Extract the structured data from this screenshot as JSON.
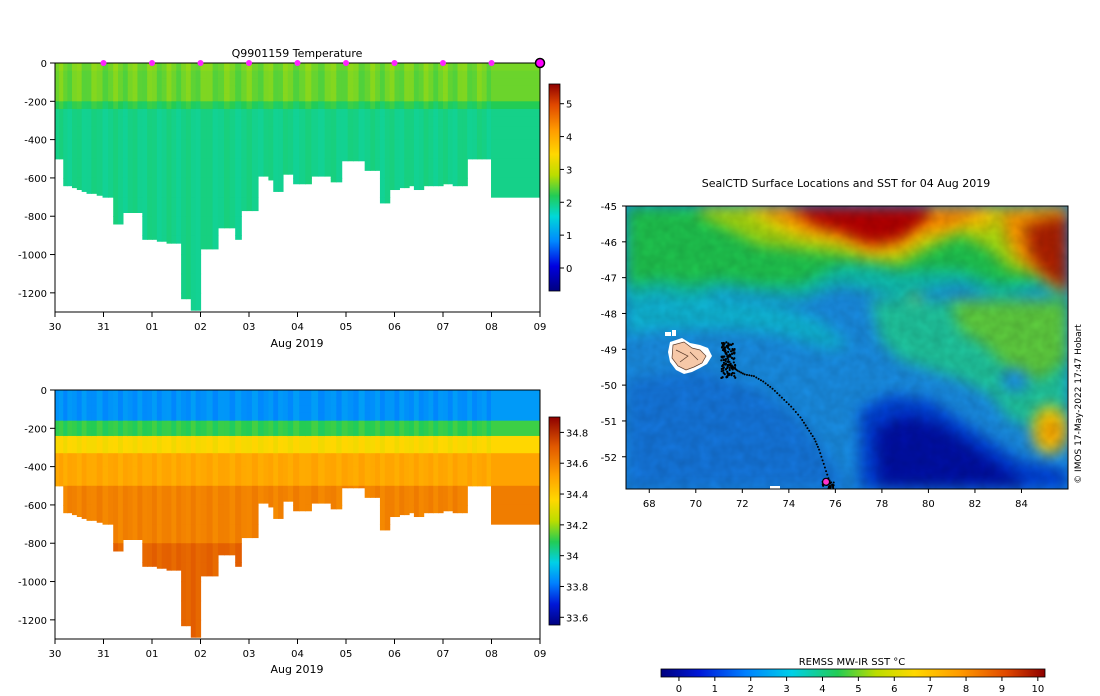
{
  "chart_data": [
    {
      "type": "heatmap",
      "id": "temperature-section",
      "title": "Q9901159  Temperature",
      "xlabel": "Aug 2019",
      "xticks": [
        "30",
        "31",
        "01",
        "02",
        "03",
        "04",
        "05",
        "06",
        "07",
        "08",
        "09"
      ],
      "xlim": [
        0,
        10
      ],
      "ylim": [
        -1300,
        0
      ],
      "yticks": [
        0,
        -200,
        -400,
        -600,
        -800,
        -1000,
        -1200
      ],
      "ytick_labels": [
        "0",
        "-200",
        "-400",
        "-600",
        "-800",
        "-1000",
        "-1200"
      ],
      "profile_times": [
        0.04,
        0.13,
        0.21,
        0.3,
        0.4,
        0.5,
        0.6,
        0.7,
        0.8,
        0.92,
        1.04,
        1.15,
        1.25,
        1.35,
        1.45,
        1.55,
        1.65,
        1.75,
        1.85,
        1.95,
        2.05,
        2.15,
        2.25,
        2.35,
        2.45,
        2.55,
        2.65,
        2.75,
        2.85,
        2.95,
        3.05,
        3.2,
        3.3,
        3.42,
        3.55,
        3.65,
        3.78,
        3.9,
        4.0,
        4.12,
        4.25,
        4.35,
        4.45,
        4.55,
        4.65,
        4.75,
        4.85,
        4.97,
        5.1,
        5.22,
        5.35,
        5.5,
        5.62,
        5.75,
        5.85,
        5.97,
        6.1,
        6.2,
        6.32,
        6.45,
        6.55,
        6.65,
        6.75,
        6.85,
        6.95,
        7.05,
        7.15,
        7.25,
        7.35,
        7.45,
        7.55,
        7.65,
        7.75,
        7.85,
        7.95,
        8.05,
        8.15,
        8.25,
        8.35,
        8.45,
        8.55,
        8.65,
        8.75,
        8.85,
        8.95,
        9.03
      ],
      "profile_depths": [
        500,
        500,
        640,
        640,
        650,
        660,
        670,
        680,
        680,
        690,
        700,
        700,
        840,
        840,
        780,
        780,
        780,
        780,
        920,
        920,
        920,
        930,
        930,
        940,
        940,
        940,
        1230,
        1230,
        1290,
        1290,
        970,
        970,
        970,
        860,
        860,
        860,
        920,
        770,
        770,
        770,
        590,
        590,
        610,
        670,
        670,
        580,
        580,
        630,
        630,
        630,
        590,
        590,
        590,
        620,
        620,
        510,
        510,
        510,
        510,
        560,
        560,
        560,
        730,
        730,
        660,
        660,
        650,
        650,
        640,
        660,
        660,
        640,
        640,
        640,
        640,
        630,
        630,
        640,
        640,
        640,
        500,
        500,
        500,
        500,
        500,
        700
      ],
      "profile_markers_at": [
        1,
        2,
        3,
        4,
        5,
        6,
        7,
        8,
        9,
        10
      ],
      "last_marker_at": 10,
      "colorbar_ticks": [
        0,
        1,
        2,
        3,
        4,
        5
      ],
      "colorbar_labels": [
        "0",
        "1",
        "2",
        "3",
        "4",
        "5"
      ],
      "colorbar_range": [
        -0.7,
        5.6
      ]
    },
    {
      "type": "heatmap",
      "id": "salinity-section",
      "title": "",
      "xlabel": "Aug 2019",
      "xticks": [
        "30",
        "31",
        "01",
        "02",
        "03",
        "04",
        "05",
        "06",
        "07",
        "08",
        "09"
      ],
      "xlim": [
        0,
        10
      ],
      "ylim": [
        -1300,
        0
      ],
      "yticks": [
        0,
        -200,
        -400,
        -600,
        -800,
        -1000,
        -1200
      ],
      "ytick_labels": [
        "0",
        "-200",
        "-400",
        "-600",
        "-800",
        "-1000",
        "-1200"
      ],
      "colorbar_ticks": [
        33.6,
        33.8,
        34.0,
        34.2,
        34.4,
        34.6,
        34.8
      ],
      "colorbar_labels": [
        "33.6",
        "33.8",
        "34",
        "34.2",
        "34.4",
        "34.6",
        "34.8"
      ],
      "colorbar_range": [
        33.55,
        34.9
      ]
    },
    {
      "type": "heatmap",
      "id": "sst-map",
      "title": "SealCTD Surface Locations and SST for 04 Aug 2019",
      "xlim": [
        67,
        86
      ],
      "ylim": [
        -52.9,
        -45
      ],
      "xticks": [
        68,
        70,
        72,
        74,
        76,
        78,
        80,
        82,
        84
      ],
      "xtick_labels": [
        "68",
        "70",
        "72",
        "74",
        "76",
        "78",
        "80",
        "82",
        "84"
      ],
      "yticks": [
        -45,
        -46,
        -47,
        -48,
        -49,
        -50,
        -51,
        -52
      ],
      "ytick_labels": [
        "-45",
        "-46",
        "-47",
        "-48",
        "-49",
        "-50",
        "-51",
        "-52"
      ],
      "colorbar_title": "REMSS MW-IR SST °C",
      "colorbar_ticks": [
        0,
        1,
        2,
        3,
        4,
        5,
        6,
        7,
        8,
        9,
        10
      ],
      "colorbar_labels": [
        "0",
        "1",
        "2",
        "3",
        "4",
        "5",
        "6",
        "7",
        "8",
        "9",
        "10"
      ],
      "colorbar_range": [
        -0.5,
        10.2
      ],
      "track": [
        [
          75.9,
          -52.85
        ],
        [
          75.7,
          -52.6
        ],
        [
          75.5,
          -52.2
        ],
        [
          75.3,
          -51.8
        ],
        [
          75.1,
          -51.5
        ],
        [
          74.8,
          -51.2
        ],
        [
          74.5,
          -50.9
        ],
        [
          74.1,
          -50.6
        ],
        [
          73.7,
          -50.35
        ],
        [
          73.3,
          -50.1
        ],
        [
          72.9,
          -49.9
        ],
        [
          72.5,
          -49.75
        ],
        [
          72.1,
          -49.7
        ],
        [
          71.8,
          -49.6
        ],
        [
          71.6,
          -49.5
        ],
        [
          71.4,
          -49.3
        ],
        [
          71.3,
          -49.1
        ],
        [
          71.2,
          -48.9
        ],
        [
          71.1,
          -48.8
        ]
      ],
      "track_cluster_center": [
        71.4,
        -49.3
      ],
      "final_position": [
        75.6,
        -52.7
      ],
      "island_center": [
        69.4,
        -49.3
      ],
      "credit": "© IMOS 17-May-2022 17:47 Hobart"
    }
  ]
}
